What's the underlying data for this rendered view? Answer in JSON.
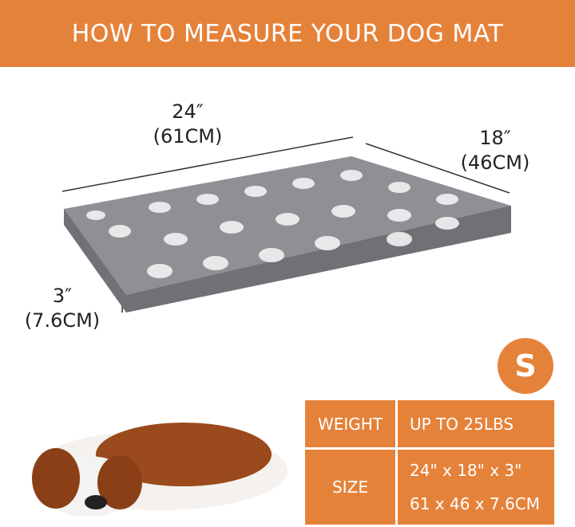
{
  "banner": {
    "title": "HOW TO MEASURE YOUR DOG MAT"
  },
  "dimensions": {
    "length": {
      "in": "24″",
      "cm": "(61CM)"
    },
    "width": {
      "in": "18″",
      "cm": "(46CM)"
    },
    "height": {
      "in": "3″",
      "cm": "(7.6CM)"
    }
  },
  "size_badge": "S",
  "spec_table": {
    "rows": [
      {
        "label": "WEIGHT",
        "values": [
          "UP TO 25LBS"
        ]
      },
      {
        "label": "SIZE",
        "values": [
          "24\" x 18\" x 3\"",
          "61 x 46 x 7.6CM"
        ]
      }
    ]
  },
  "colors": {
    "accent": "#e5823a",
    "mat": "#8e9095"
  }
}
